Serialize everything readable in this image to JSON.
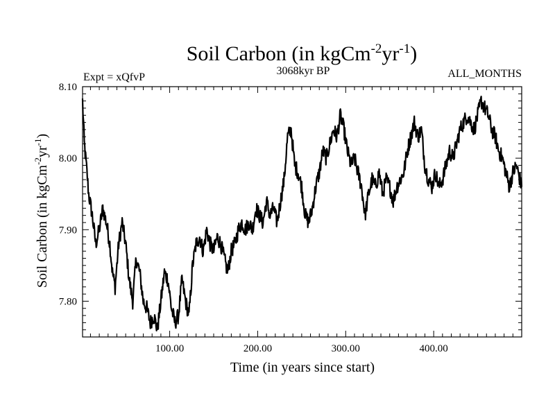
{
  "chart_data": {
    "type": "line",
    "title_main": "Soil Carbon (in kgCm",
    "title_sup1": "-2",
    "title_mid": "yr",
    "title_sup2": "-1",
    "title_end": ")",
    "subtitle": "3068kyr BP",
    "expt_label": "Expt = xQfvP",
    "months_label": "ALL_MONTHS",
    "xlabel": "Time (in years since start)",
    "ylabel_main": "Soil Carbon (in kgCm",
    "ylabel_sup1": "-2",
    "ylabel_mid": "yr",
    "ylabel_sup2": "-1",
    "ylabel_end": ")",
    "xlim": [
      1,
      500
    ],
    "ylim": [
      7.75,
      8.1
    ],
    "x_ticks": [
      {
        "value": 100,
        "label": "100.00"
      },
      {
        "value": 200,
        "label": "200.00"
      },
      {
        "value": 300,
        "label": "300.00"
      },
      {
        "value": 400,
        "label": "400.00"
      }
    ],
    "y_ticks": [
      {
        "value": 7.8,
        "label": "7.80"
      },
      {
        "value": 7.9,
        "label": "7.90"
      },
      {
        "value": 8.0,
        "label": "8.00"
      },
      {
        "value": 8.1,
        "label": "8.10"
      }
    ],
    "series": [
      {
        "name": "Soil Carbon",
        "x": [
          1,
          3,
          6,
          8,
          12,
          16,
          20,
          24,
          28,
          32,
          35,
          38,
          42,
          46,
          50,
          54,
          58,
          62,
          66,
          70,
          74,
          78,
          82,
          86,
          90,
          94,
          98,
          102,
          106,
          110,
          114,
          118,
          122,
          126,
          130,
          134,
          138,
          142,
          146,
          150,
          154,
          158,
          162,
          166,
          170,
          174,
          178,
          182,
          186,
          190,
          194,
          198,
          202,
          206,
          210,
          214,
          218,
          222,
          226,
          230,
          234,
          238,
          242,
          246,
          250,
          254,
          258,
          262,
          266,
          270,
          274,
          278,
          282,
          286,
          290,
          294,
          298,
          302,
          306,
          310,
          314,
          318,
          322,
          326,
          330,
          334,
          338,
          342,
          346,
          350,
          354,
          358,
          362,
          366,
          370,
          374,
          378,
          382,
          386,
          390,
          394,
          398,
          402,
          406,
          410,
          414,
          418,
          422,
          426,
          430,
          434,
          438,
          442,
          446,
          450,
          454,
          458,
          462,
          466,
          470,
          474,
          478,
          482,
          486,
          490,
          494,
          498,
          500
        ],
        "y": [
          8.08,
          8.02,
          7.98,
          7.95,
          7.92,
          7.88,
          7.9,
          7.93,
          7.91,
          7.88,
          7.84,
          7.82,
          7.88,
          7.91,
          7.88,
          7.83,
          7.8,
          7.86,
          7.84,
          7.8,
          7.79,
          7.77,
          7.78,
          7.76,
          7.8,
          7.84,
          7.83,
          7.79,
          7.77,
          7.78,
          7.83,
          7.8,
          7.78,
          7.85,
          7.88,
          7.89,
          7.87,
          7.9,
          7.88,
          7.87,
          7.89,
          7.88,
          7.86,
          7.84,
          7.87,
          7.88,
          7.9,
          7.91,
          7.9,
          7.91,
          7.9,
          7.93,
          7.92,
          7.91,
          7.94,
          7.92,
          7.93,
          7.91,
          7.94,
          7.97,
          8.03,
          8.04,
          7.99,
          7.98,
          7.96,
          7.92,
          7.91,
          7.93,
          7.96,
          7.98,
          8.01,
          8.0,
          8.02,
          8.04,
          8.03,
          8.06,
          8.04,
          8.01,
          7.99,
          8.0,
          7.98,
          7.96,
          7.92,
          7.95,
          7.97,
          7.96,
          7.98,
          7.95,
          7.97,
          7.96,
          7.94,
          7.96,
          7.97,
          7.98,
          8.01,
          8.03,
          8.05,
          8.03,
          8.04,
          7.99,
          7.97,
          7.96,
          7.98,
          7.96,
          7.97,
          7.99,
          8.01,
          8.0,
          8.02,
          8.04,
          8.05,
          8.06,
          8.05,
          8.04,
          8.06,
          8.08,
          8.07,
          8.06,
          8.04,
          8.03,
          8.01,
          8.0,
          7.98,
          7.96,
          7.98,
          7.99,
          7.97,
          7.96
        ]
      }
    ]
  }
}
